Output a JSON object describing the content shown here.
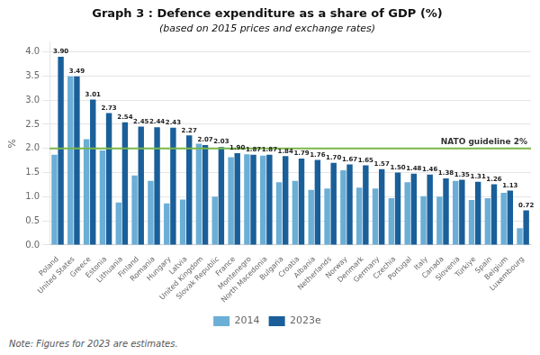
{
  "chart_data": {
    "type": "bar",
    "title": "Graph 3 : Defence expenditure as a share of GDP (%)",
    "subtitle": "(based on 2015 prices and exchange rates)",
    "note": "Note: Figures for 2023 are estimates.",
    "ylabel": "%",
    "categories": [
      "Poland",
      "United States",
      "Greece",
      "Estonia",
      "Lithuania",
      "Finland",
      "Romania",
      "Hungary",
      "Latvia",
      "United Kingdom",
      "Slovak Republic",
      "France",
      "Montenegro",
      "North Macedonia",
      "Bulgaria",
      "Croatia",
      "Albania",
      "Netherlands",
      "Norway",
      "Denmark",
      "Germany",
      "Czechia",
      "Portugal",
      "Italy",
      "Canada",
      "Slovenia",
      "Türkiye",
      "Spain",
      "Belgium",
      "Luxembourg"
    ],
    "series": [
      {
        "name": "2014",
        "color": "#6baed6",
        "values": [
          1.87,
          3.49,
          2.19,
          1.96,
          0.88,
          1.44,
          1.33,
          0.86,
          0.94,
          2.1,
          1.0,
          1.82,
          1.88,
          1.85,
          1.3,
          1.33,
          1.14,
          1.17,
          1.55,
          1.19,
          1.17,
          0.97,
          1.3,
          1.01,
          1.0,
          1.33,
          0.93,
          0.97,
          1.08,
          0.35
        ]
      },
      {
        "name": "2023e",
        "color": "#1a5f99",
        "data_labels": true,
        "values": [
          3.9,
          3.49,
          3.01,
          2.73,
          2.54,
          2.45,
          2.44,
          2.43,
          2.27,
          2.07,
          2.03,
          1.9,
          1.87,
          1.87,
          1.84,
          1.79,
          1.76,
          1.7,
          1.67,
          1.65,
          1.57,
          1.5,
          1.48,
          1.46,
          1.38,
          1.35,
          1.31,
          1.26,
          1.13,
          0.72
        ],
        "value_labels": [
          "3.90",
          "3.49",
          "3.01",
          "2.73",
          "2.54",
          "2.45",
          "2.44",
          "2.43",
          "2.27",
          "2.07",
          "2.03",
          "1.90",
          "1.87",
          "1.87",
          "1.84",
          "1.79",
          "1.76",
          "1.70",
          "1.67",
          "1.65",
          "1.57",
          "1.50",
          "1.48",
          "1.46",
          "1.38",
          "1.35",
          "1.31",
          "1.26",
          "1.13",
          "0.72"
        ]
      }
    ],
    "annotations": [
      {
        "text": "NATO guideline 2%",
        "y": 2.0,
        "color": "#7ab648"
      }
    ],
    "ylim": [
      0.0,
      4.2
    ],
    "yticks": [
      {
        "value": 0,
        "label": "0.0"
      },
      0.5,
      {
        "value": 1,
        "label": "1.0"
      },
      1.5,
      {
        "value": 2,
        "label": "2.0"
      },
      2.5,
      {
        "value": 3,
        "label": "3.0"
      },
      3.5,
      {
        "value": 4,
        "label": "4.0"
      }
    ],
    "grid": true,
    "legend": "bottom"
  }
}
